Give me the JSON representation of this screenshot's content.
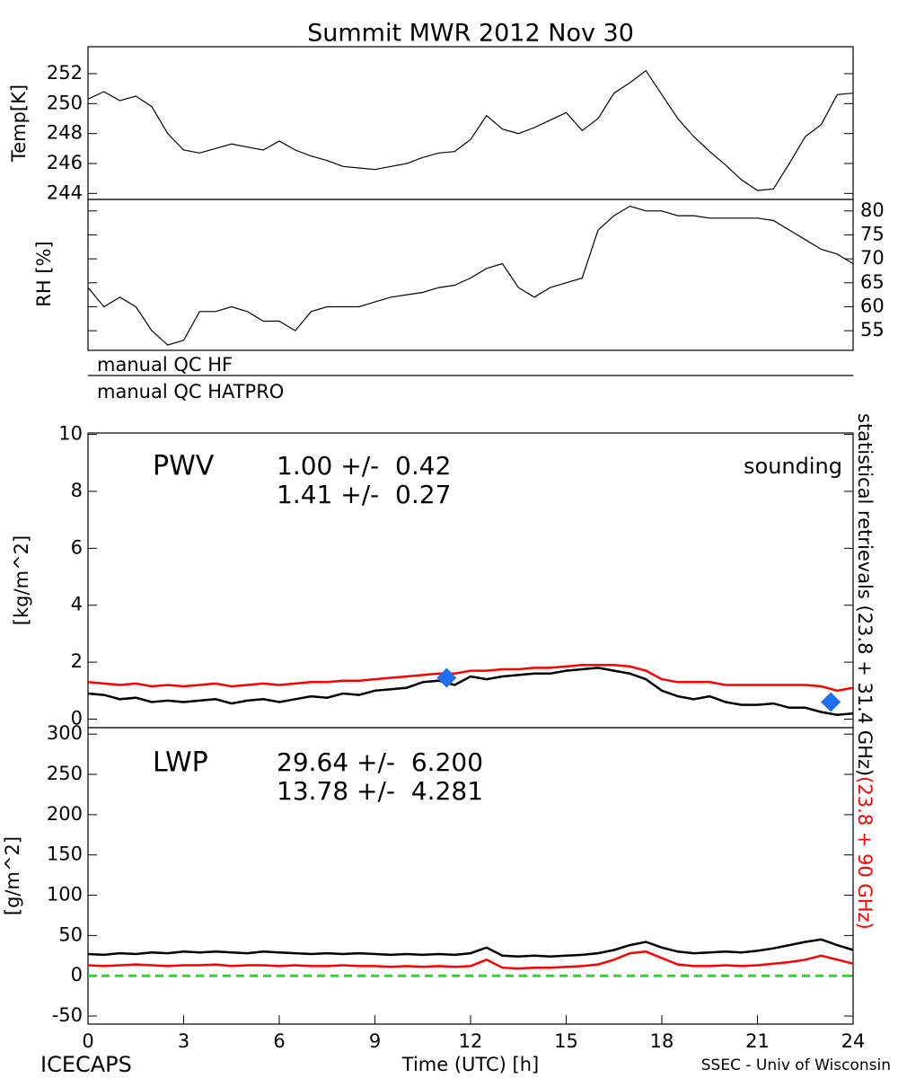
{
  "title": "Summit MWR 2012 Nov 30",
  "qc_flags": [
    "manual QC HF",
    "manual QC HATPRO"
  ],
  "footer": {
    "left": "ICECAPS",
    "right": "SSEC - Univ of Wisconsin"
  },
  "chart_data": [
    {
      "type": "line",
      "ylabel": "Temp[K]",
      "xlim": [
        0,
        24
      ],
      "ylim": [
        243.6,
        253.8
      ],
      "yticks": [
        244,
        246,
        248,
        250,
        252
      ],
      "x": [
        0,
        0.5,
        1,
        1.5,
        2,
        2.5,
        3,
        3.5,
        4,
        4.5,
        5,
        5.5,
        6,
        6.5,
        7,
        7.5,
        8,
        8.5,
        9,
        9.5,
        10,
        10.5,
        11,
        11.5,
        12,
        12.5,
        13,
        13.5,
        14,
        14.5,
        15,
        15.5,
        16,
        16.5,
        17,
        17.5,
        18,
        18.5,
        19,
        19.5,
        20,
        20.5,
        21,
        21.5,
        22,
        22.5,
        23,
        23.5,
        24
      ],
      "series": [
        {
          "color": "#000000",
          "values": [
            250.3,
            250.8,
            250.2,
            250.5,
            249.8,
            248.0,
            246.9,
            246.7,
            247.0,
            247.3,
            247.1,
            246.9,
            247.5,
            246.9,
            246.5,
            246.2,
            245.8,
            245.7,
            245.6,
            245.8,
            246.0,
            246.4,
            246.7,
            246.8,
            247.6,
            249.2,
            248.3,
            248.0,
            248.4,
            248.9,
            249.4,
            248.2,
            249.0,
            250.7,
            251.4,
            252.2,
            250.6,
            249.0,
            247.8,
            246.8,
            245.9,
            244.9,
            244.2,
            244.3,
            246.0,
            247.8,
            248.6,
            250.6,
            250.7
          ]
        }
      ]
    },
    {
      "type": "line",
      "ylabel": "RH [%]",
      "yaxis_side": "right",
      "xlim": [
        0,
        24
      ],
      "ylim": [
        50.9,
        82.4
      ],
      "yticks": [
        55,
        60,
        65,
        70,
        75,
        80
      ],
      "x": [
        0,
        0.5,
        1,
        1.5,
        2,
        2.5,
        3,
        3.5,
        4,
        4.5,
        5,
        5.5,
        6,
        6.5,
        7,
        7.5,
        8,
        8.5,
        9,
        9.5,
        10,
        10.5,
        11,
        11.5,
        12,
        12.5,
        13,
        13.5,
        14,
        14.5,
        15,
        15.5,
        16,
        16.5,
        17,
        17.5,
        18,
        18.5,
        19,
        19.5,
        20,
        20.5,
        21,
        21.5,
        22,
        22.5,
        23,
        23.5,
        24
      ],
      "series": [
        {
          "color": "#000000",
          "values": [
            64,
            60,
            62,
            60,
            55,
            52,
            53,
            59,
            59,
            60,
            59,
            57,
            57,
            55,
            59,
            60,
            60,
            60,
            61,
            62,
            62.5,
            63,
            64,
            64.5,
            66,
            68,
            69,
            64,
            62,
            64,
            65,
            66,
            76,
            79,
            81,
            80,
            80,
            79,
            79,
            78.5,
            78.5,
            78.5,
            78.5,
            78,
            76,
            74,
            72,
            71,
            69
          ]
        }
      ]
    },
    {
      "type": "line",
      "ylabel": "[kg/m^2]",
      "label": "PWV",
      "xlim": [
        0,
        24
      ],
      "ylim": [
        -0.3,
        10.05
      ],
      "yticks": [
        0,
        2,
        4,
        6,
        8,
        10
      ],
      "stats": [
        "1.00 +/-  0.42",
        "1.41 +/-  0.27"
      ],
      "x": [
        0,
        0.5,
        1,
        1.5,
        2,
        2.5,
        3,
        3.5,
        4,
        4.5,
        5,
        5.5,
        6,
        6.5,
        7,
        7.5,
        8,
        8.5,
        9,
        9.5,
        10,
        10.5,
        11,
        11.5,
        12,
        12.5,
        13,
        13.5,
        14,
        14.5,
        15,
        15.5,
        16,
        16.5,
        17,
        17.5,
        18,
        18.5,
        19,
        19.5,
        20,
        20.5,
        21,
        21.5,
        22,
        22.5,
        23,
        23.5,
        24
      ],
      "series": [
        {
          "name": "statistical retrievals (23.8 + 31.4 GHz)",
          "color": "#000000",
          "values": [
            0.9,
            0.85,
            0.7,
            0.75,
            0.6,
            0.65,
            0.6,
            0.65,
            0.7,
            0.55,
            0.65,
            0.7,
            0.6,
            0.7,
            0.8,
            0.75,
            0.9,
            0.85,
            1.0,
            1.05,
            1.1,
            1.3,
            1.35,
            1.2,
            1.5,
            1.4,
            1.5,
            1.55,
            1.6,
            1.6,
            1.7,
            1.75,
            1.8,
            1.7,
            1.6,
            1.4,
            1.0,
            0.8,
            0.7,
            0.8,
            0.6,
            0.5,
            0.5,
            0.55,
            0.4,
            0.4,
            0.25,
            0.15,
            0.2
          ]
        },
        {
          "name": "(23.8 + 90 GHz)",
          "color": "#ff0000",
          "values": [
            1.3,
            1.25,
            1.2,
            1.25,
            1.15,
            1.2,
            1.15,
            1.2,
            1.25,
            1.15,
            1.2,
            1.25,
            1.2,
            1.25,
            1.3,
            1.3,
            1.35,
            1.35,
            1.4,
            1.45,
            1.5,
            1.55,
            1.6,
            1.6,
            1.7,
            1.7,
            1.75,
            1.75,
            1.8,
            1.8,
            1.85,
            1.9,
            1.9,
            1.9,
            1.85,
            1.7,
            1.4,
            1.3,
            1.3,
            1.3,
            1.2,
            1.2,
            1.2,
            1.2,
            1.2,
            1.2,
            1.15,
            1.0,
            1.1
          ]
        },
        {
          "name": "sounding",
          "color": "#1e6ff0",
          "x": [
            11.25,
            23.3
          ],
          "values": [
            1.45,
            0.6
          ]
        }
      ]
    },
    {
      "type": "line",
      "ylabel": "[g/m^2]",
      "label": "LWP",
      "xlabel": "Time (UTC) [h]",
      "xlim": [
        0,
        24
      ],
      "xticks": [
        0,
        3,
        6,
        9,
        12,
        15,
        18,
        21,
        24
      ],
      "ylim": [
        -60,
        308
      ],
      "yticks": [
        -50,
        0,
        50,
        100,
        150,
        200,
        250,
        300
      ],
      "stats": [
        "29.64 +/-  6.200",
        "13.78 +/-  4.281"
      ],
      "reference_line": {
        "value": 0,
        "color": "#22dd22"
      },
      "x": [
        0,
        0.5,
        1,
        1.5,
        2,
        2.5,
        3,
        3.5,
        4,
        4.5,
        5,
        5.5,
        6,
        6.5,
        7,
        7.5,
        8,
        8.5,
        9,
        9.5,
        10,
        10.5,
        11,
        11.5,
        12,
        12.5,
        13,
        13.5,
        14,
        14.5,
        15,
        15.5,
        16,
        16.5,
        17,
        17.5,
        18,
        18.5,
        19,
        19.5,
        20,
        20.5,
        21,
        21.5,
        22,
        22.5,
        23,
        23.5,
        24
      ],
      "series": [
        {
          "color": "#000000",
          "values": [
            27,
            26,
            28,
            27,
            29,
            28,
            30,
            29,
            30,
            29,
            28,
            30,
            29,
            28,
            27,
            28,
            27,
            28,
            27,
            26,
            27,
            26,
            27,
            26,
            28,
            35,
            25,
            24,
            25,
            24,
            25,
            26,
            28,
            32,
            38,
            42,
            35,
            30,
            28,
            29,
            30,
            29,
            31,
            34,
            38,
            42,
            45,
            38,
            32
          ]
        },
        {
          "color": "#ff0000",
          "values": [
            13,
            12,
            13,
            14,
            13,
            12,
            13,
            13,
            14,
            12,
            13,
            13,
            12,
            13,
            12,
            12,
            13,
            12,
            12,
            11,
            12,
            11,
            12,
            11,
            12,
            20,
            10,
            9,
            10,
            10,
            11,
            12,
            14,
            20,
            28,
            30,
            22,
            14,
            12,
            12,
            13,
            12,
            13,
            15,
            17,
            20,
            25,
            20,
            15
          ]
        }
      ]
    }
  ]
}
